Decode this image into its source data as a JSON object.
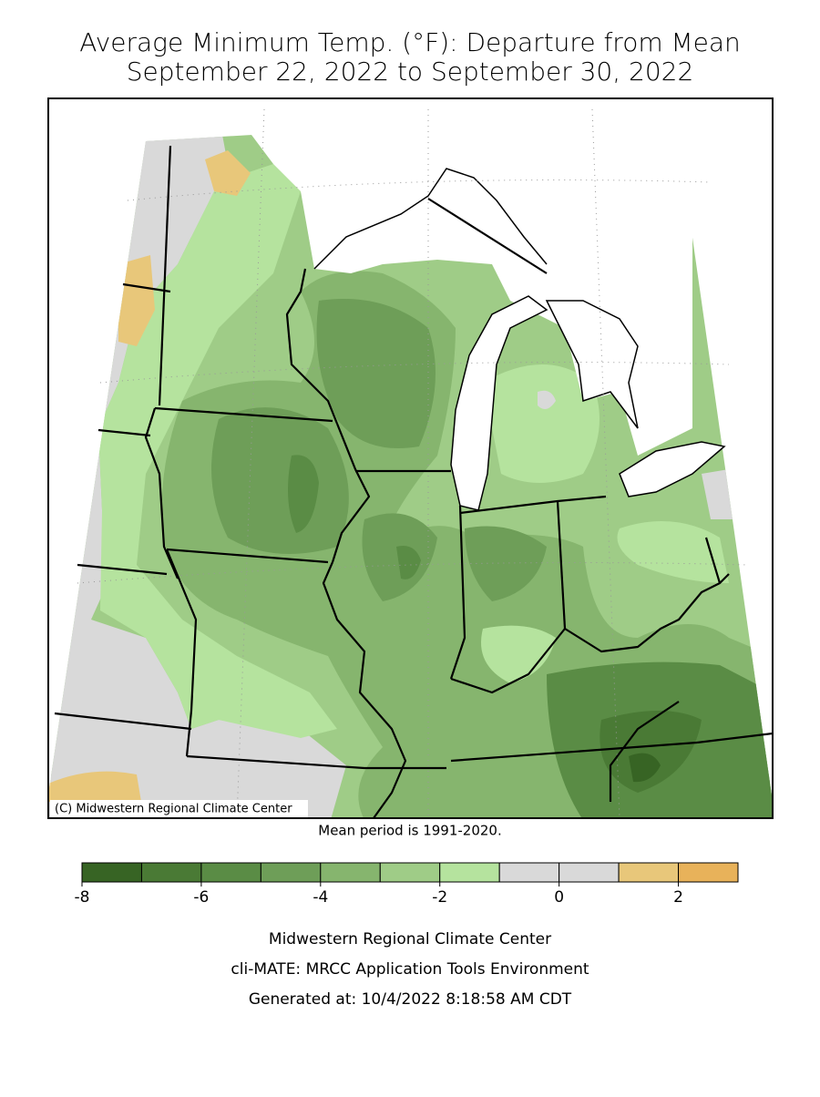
{
  "title": [
    "Average Minimum Temp. (°F): Departure from Mean",
    "September 22, 2022 to September 30, 2022"
  ],
  "map": {
    "credit": "(C) Midwestern Regional Climate Center",
    "note": "Mean period is 1991-2020."
  },
  "legend": {
    "bins": [
      -8,
      -7,
      -6,
      -5,
      -4,
      -3,
      -2,
      -1,
      0,
      1,
      2,
      3
    ],
    "colors": [
      "#376424",
      "#4a7a35",
      "#5a8c45",
      "#6e9e58",
      "#86b56e",
      "#9fcc87",
      "#b5e39e",
      "#d9d9d9",
      "#d9d9d9",
      "#e8c77a",
      "#e8b25a"
    ],
    "ticks": [
      -8,
      -6,
      -4,
      -2,
      0,
      2
    ]
  },
  "footer": [
    "Midwestern Regional Climate Center",
    "cli-MATE: MRCC Application Tools Environment",
    "Generated at: 10/4/2022 8:18:58 AM CDT"
  ]
}
